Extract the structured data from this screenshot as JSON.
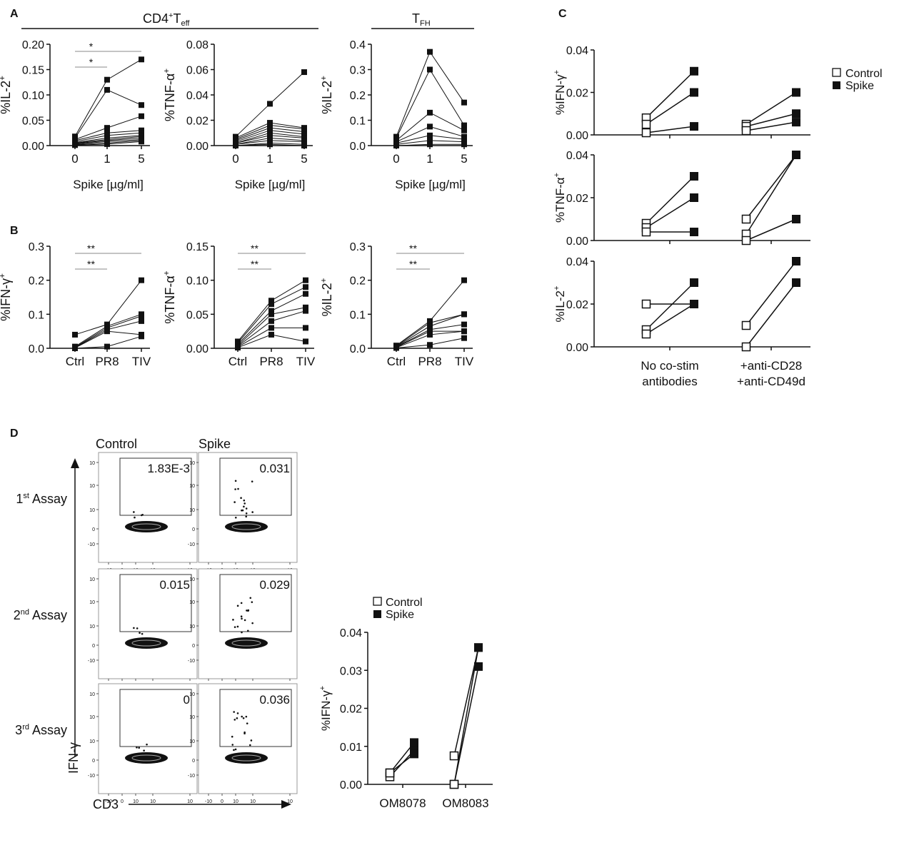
{
  "panel_labels": {
    "A": "A",
    "B": "B",
    "C": "C",
    "D": "D"
  },
  "headers": {
    "cd4_main": "CD4",
    "cd4_sup": "+",
    "cd4_T": "T",
    "cd4_sub": "eff",
    "tfh_T": "T",
    "tfh_sub": "FH"
  },
  "chart_data": [
    {
      "id": "A1",
      "type": "line",
      "categories": [
        "0",
        "1",
        "5"
      ],
      "xlabel": "Spike [µg/ml]",
      "ylabel": "%IL-2+",
      "ylim": [
        0,
        0.2
      ],
      "yticks": [
        "0.00",
        "0.05",
        "0.10",
        "0.15",
        "0.20"
      ],
      "sig": [
        {
          "label": "*",
          "from": 0,
          "to": 2
        },
        {
          "label": "*",
          "from": 0,
          "to": 1
        }
      ],
      "series": [
        [
          0.018,
          0.13,
          0.17
        ],
        [
          0.015,
          0.11,
          0.08
        ],
        [
          0.012,
          0.035,
          0.058
        ],
        [
          0.01,
          0.025,
          0.03
        ],
        [
          0.008,
          0.02,
          0.025
        ],
        [
          0.006,
          0.015,
          0.02
        ],
        [
          0.005,
          0.012,
          0.018
        ],
        [
          0.004,
          0.01,
          0.015
        ],
        [
          0.003,
          0.008,
          0.012
        ],
        [
          0.002,
          0.005,
          0.01
        ],
        [
          0.001,
          0.003,
          0.008
        ]
      ]
    },
    {
      "id": "A2",
      "type": "line",
      "categories": [
        "0",
        "1",
        "5"
      ],
      "xlabel": "Spike [µg/ml]",
      "ylabel": "%TNF-α+",
      "ylim": [
        0,
        0.08
      ],
      "yticks": [
        "0.00",
        "0.02",
        "0.04",
        "0.06",
        "0.08"
      ],
      "sig": [],
      "series": [
        [
          0.007,
          0.033,
          0.058
        ],
        [
          0.006,
          0.018,
          0.014
        ],
        [
          0.005,
          0.016,
          0.013
        ],
        [
          0.004,
          0.014,
          0.011
        ],
        [
          0.003,
          0.012,
          0.009
        ],
        [
          0.002,
          0.01,
          0.007
        ],
        [
          0.002,
          0.008,
          0.006
        ],
        [
          0.001,
          0.006,
          0.004
        ],
        [
          0.001,
          0.004,
          0.003
        ],
        [
          0.0,
          0.002,
          0.001
        ],
        [
          0.0,
          0.001,
          0.0
        ]
      ]
    },
    {
      "id": "A3",
      "type": "line",
      "categories": [
        "0",
        "1",
        "5"
      ],
      "xlabel": "Spike [µg/ml]",
      "ylabel": "%IL-2+",
      "ylim": [
        0,
        0.4
      ],
      "yticks": [
        "0.0",
        "0.1",
        "0.2",
        "0.3",
        "0.4"
      ],
      "sig": [],
      "series": [
        [
          0.035,
          0.37,
          0.17
        ],
        [
          0.03,
          0.3,
          0.08
        ],
        [
          0.02,
          0.13,
          0.06
        ],
        [
          0.015,
          0.075,
          0.035
        ],
        [
          0.01,
          0.04,
          0.025
        ],
        [
          0.005,
          0.02,
          0.015
        ],
        [
          0.0,
          0.005,
          0.005
        ]
      ]
    },
    {
      "id": "B1",
      "type": "line",
      "categories": [
        "Ctrl",
        "PR8",
        "TIV"
      ],
      "xlabel": "",
      "ylabel": "%IFN-γ+",
      "ylim": [
        0,
        0.3
      ],
      "yticks": [
        "0.0",
        "0.1",
        "0.2",
        "0.3"
      ],
      "sig": [
        {
          "label": "**",
          "from": 0,
          "to": 2
        },
        {
          "label": "**",
          "from": 0,
          "to": 1
        }
      ],
      "series": [
        [
          0.04,
          0.07,
          0.2
        ],
        [
          0.005,
          0.065,
          0.1
        ],
        [
          0.003,
          0.06,
          0.095
        ],
        [
          0.002,
          0.055,
          0.08
        ],
        [
          0.001,
          0.05,
          0.04
        ],
        [
          0.0,
          0.005,
          0.035
        ]
      ]
    },
    {
      "id": "B2",
      "type": "line",
      "categories": [
        "Ctrl",
        "PR8",
        "TIV"
      ],
      "xlabel": "",
      "ylabel": "%TNF-α+",
      "ylim": [
        0,
        0.15
      ],
      "yticks": [
        "0.00",
        "0.05",
        "0.10",
        "0.15"
      ],
      "sig": [
        {
          "label": "**",
          "from": 0,
          "to": 2
        },
        {
          "label": "**",
          "from": 0,
          "to": 1
        }
      ],
      "series": [
        [
          0.01,
          0.07,
          0.1
        ],
        [
          0.008,
          0.065,
          0.09
        ],
        [
          0.006,
          0.055,
          0.08
        ],
        [
          0.004,
          0.05,
          0.06
        ],
        [
          0.003,
          0.04,
          0.055
        ],
        [
          0.002,
          0.03,
          0.03
        ],
        [
          0.001,
          0.02,
          0.01
        ]
      ]
    },
    {
      "id": "B3",
      "type": "line",
      "categories": [
        "Ctrl",
        "PR8",
        "TIV"
      ],
      "xlabel": "",
      "ylabel": "%IL-2+",
      "ylim": [
        0,
        0.3
      ],
      "yticks": [
        "0.0",
        "0.1",
        "0.2",
        "0.3"
      ],
      "sig": [
        {
          "label": "**",
          "from": 0,
          "to": 2
        },
        {
          "label": "**",
          "from": 0,
          "to": 1
        }
      ],
      "series": [
        [
          0.008,
          0.08,
          0.2
        ],
        [
          0.006,
          0.075,
          0.1
        ],
        [
          0.005,
          0.065,
          0.1
        ],
        [
          0.004,
          0.055,
          0.07
        ],
        [
          0.003,
          0.05,
          0.05
        ],
        [
          0.002,
          0.04,
          0.05
        ],
        [
          0.001,
          0.01,
          0.03
        ]
      ]
    },
    {
      "id": "C",
      "type": "line",
      "categories": [
        "No co-stim\nantibodies",
        "+anti-CD28\n+anti-CD49d"
      ],
      "legend": [
        "Control",
        "Spike"
      ],
      "groups": [
        {
          "ylabel": "%IFN-γ+",
          "yticks": [
            "0.00",
            "0.02",
            "0.04"
          ],
          "ylim": [
            0,
            0.04
          ],
          "pairs": [
            [
              [
                0.008,
                0.03
              ],
              [
                0.005,
                0.02
              ],
              [
                0.001,
                0.004
              ]
            ],
            [
              [
                0.005,
                0.02
              ],
              [
                0.004,
                0.01
              ],
              [
                0.002,
                0.006
              ]
            ]
          ]
        },
        {
          "ylabel": "%TNF-α+",
          "yticks": [
            "0.00",
            "0.02",
            "0.04"
          ],
          "ylim": [
            0,
            0.04
          ],
          "pairs": [
            [
              [
                0.008,
                0.03
              ],
              [
                0.006,
                0.02
              ],
              [
                0.004,
                0.004
              ]
            ],
            [
              [
                0.01,
                0.04
              ],
              [
                0.003,
                0.04
              ],
              [
                0.0,
                0.01
              ]
            ]
          ]
        },
        {
          "ylabel": "%IL-2+",
          "yticks": [
            "0.00",
            "0.02",
            "0.04"
          ],
          "ylim": [
            0,
            0.04
          ],
          "pairs": [
            [
              [
                0.02,
                0.02
              ],
              [
                0.008,
                0.03
              ],
              [
                0.006,
                0.02
              ]
            ],
            [
              [
                0.01,
                0.04
              ],
              [
                0.0,
                0.03
              ]
            ]
          ]
        }
      ]
    },
    {
      "id": "D-bar",
      "type": "line",
      "categories": [
        "OM8078",
        "OM8083"
      ],
      "ylabel": "%IFN-γ+",
      "ylim": [
        0,
        0.04
      ],
      "yticks": [
        "0.00",
        "0.01",
        "0.02",
        "0.03",
        "0.04"
      ],
      "legend": [
        "Control",
        "Spike"
      ],
      "pairs": [
        [
          [
            0.003,
            0.011
          ],
          [
            0.002,
            0.009
          ],
          [
            0.003,
            0.008
          ]
        ],
        [
          [
            0.0075,
            0.036
          ],
          [
            0.0,
            0.031
          ],
          [
            0.0,
            0.036
          ]
        ]
      ]
    }
  ],
  "flow": {
    "col_labels": [
      "Control",
      "Spike"
    ],
    "row_labels": [
      {
        "n": "1",
        "sup": "st",
        "t": " Assay"
      },
      {
        "n": "2",
        "sup": "nd",
        "t": " Assay"
      },
      {
        "n": "3",
        "sup": "rd",
        "t": " Assay"
      }
    ],
    "gate_values": [
      [
        "1.83E-3",
        "0.031"
      ],
      [
        "0.015",
        "0.029"
      ],
      [
        "0",
        "0.036"
      ]
    ],
    "y_axis": "IFN-γ",
    "x_axis": "CD3",
    "xtick_labels": [
      "-10",
      "0",
      "10",
      "10",
      "10"
    ],
    "ytick_labels": [
      "10",
      "10",
      "10",
      "0",
      "-10"
    ]
  }
}
